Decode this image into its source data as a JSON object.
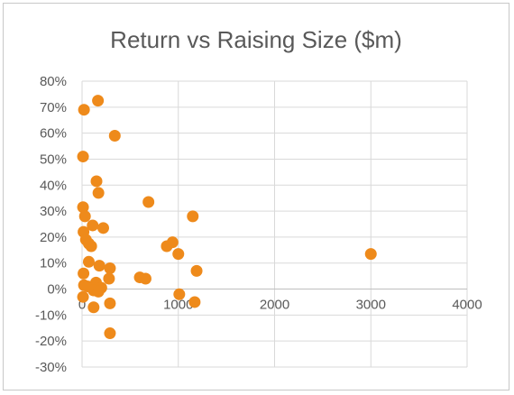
{
  "chart_data": {
    "type": "scatter",
    "title": "Return vs Raising Size ($m)",
    "xlabel": "",
    "ylabel": "",
    "xlim": [
      0,
      4000
    ],
    "ylim": [
      -0.3,
      0.8
    ],
    "x_ticks": [
      0,
      1000,
      2000,
      3000,
      4000
    ],
    "x_tick_labels": [
      "0",
      "1000",
      "2000",
      "3000",
      "4000"
    ],
    "y_ticks": [
      -0.3,
      -0.2,
      -0.1,
      0,
      0.1,
      0.2,
      0.3,
      0.4,
      0.5,
      0.6,
      0.7,
      0.8
    ],
    "y_tick_labels": [
      "-30%",
      "-20%",
      "-10%",
      "0%",
      "10%",
      "20%",
      "30%",
      "40%",
      "50%",
      "60%",
      "70%",
      "80%"
    ],
    "grid": true,
    "marker_color": "#ee8a1b",
    "series": [
      {
        "points": [
          {
            "x": 20,
            "y": 0.69
          },
          {
            "x": 165,
            "y": 0.725
          },
          {
            "x": 340,
            "y": 0.59
          },
          {
            "x": 10,
            "y": 0.51
          },
          {
            "x": 150,
            "y": 0.415
          },
          {
            "x": 170,
            "y": 0.37
          },
          {
            "x": 690,
            "y": 0.335
          },
          {
            "x": 10,
            "y": 0.315
          },
          {
            "x": 30,
            "y": 0.28
          },
          {
            "x": 1150,
            "y": 0.28
          },
          {
            "x": 110,
            "y": 0.245
          },
          {
            "x": 220,
            "y": 0.235
          },
          {
            "x": 15,
            "y": 0.22
          },
          {
            "x": 40,
            "y": 0.19
          },
          {
            "x": 940,
            "y": 0.18
          },
          {
            "x": 70,
            "y": 0.175
          },
          {
            "x": 95,
            "y": 0.165
          },
          {
            "x": 880,
            "y": 0.165
          },
          {
            "x": 1000,
            "y": 0.135
          },
          {
            "x": 3000,
            "y": 0.135
          },
          {
            "x": 70,
            "y": 0.105
          },
          {
            "x": 180,
            "y": 0.09
          },
          {
            "x": 290,
            "y": 0.08
          },
          {
            "x": 1190,
            "y": 0.07
          },
          {
            "x": 15,
            "y": 0.06
          },
          {
            "x": 600,
            "y": 0.045
          },
          {
            "x": 660,
            "y": 0.04
          },
          {
            "x": 280,
            "y": 0.04
          },
          {
            "x": 145,
            "y": 0.025
          },
          {
            "x": 20,
            "y": 0.015
          },
          {
            "x": 60,
            "y": 0.01
          },
          {
            "x": 200,
            "y": 0.005
          },
          {
            "x": 120,
            "y": -0.005
          },
          {
            "x": 170,
            "y": -0.01
          },
          {
            "x": 1010,
            "y": -0.02
          },
          {
            "x": 10,
            "y": -0.03
          },
          {
            "x": 1170,
            "y": -0.05
          },
          {
            "x": 290,
            "y": -0.055
          },
          {
            "x": 120,
            "y": -0.07
          },
          {
            "x": 290,
            "y": -0.17
          }
        ]
      }
    ]
  }
}
